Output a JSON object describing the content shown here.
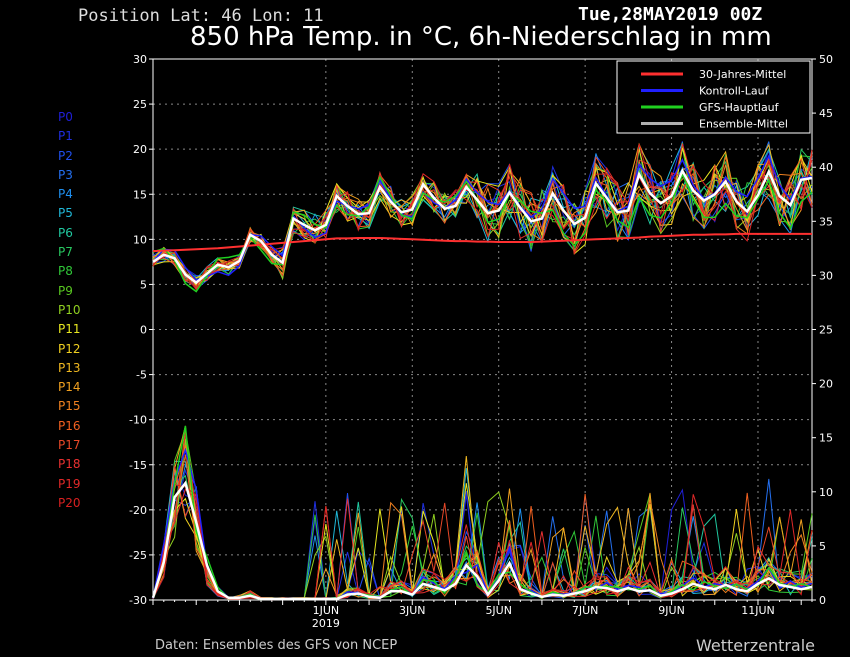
{
  "header": {
    "position_text": "Position   Lat: 46 Lon: 11",
    "date": "Tue,28MAY2019 00Z",
    "title": "850 hPa Temp. in °C, 6h-Niederschlag in mm"
  },
  "footer": {
    "source": "Daten: Ensembles des GFS von NCEP",
    "brand": "Wetterzentrale"
  },
  "members": [
    {
      "label": "P0",
      "color": "#1f1fd8"
    },
    {
      "label": "P1",
      "color": "#1f2fe0"
    },
    {
      "label": "P2",
      "color": "#2050ee"
    },
    {
      "label": "P3",
      "color": "#2470f0"
    },
    {
      "label": "P4",
      "color": "#1f90f0"
    },
    {
      "label": "P5",
      "color": "#20b8d8"
    },
    {
      "label": "P6",
      "color": "#20c8a0"
    },
    {
      "label": "P7",
      "color": "#28c860"
    },
    {
      "label": "P8",
      "color": "#30c838"
    },
    {
      "label": "P9",
      "color": "#58c820"
    },
    {
      "label": "P10",
      "color": "#90d020"
    },
    {
      "label": "P11",
      "color": "#e8e820"
    },
    {
      "label": "P12",
      "color": "#f0d020"
    },
    {
      "label": "P13",
      "color": "#f0b820"
    },
    {
      "label": "P14",
      "color": "#f0a020"
    },
    {
      "label": "P15",
      "color": "#f08020"
    },
    {
      "label": "P16",
      "color": "#f06020"
    },
    {
      "label": "P17",
      "color": "#e84828"
    },
    {
      "label": "P18",
      "color": "#e83030"
    },
    {
      "label": "P19",
      "color": "#e02828"
    },
    {
      "label": "P20",
      "color": "#d82020"
    }
  ],
  "chart_data": {
    "type": "line",
    "title": "850 hPa Temp. in °C, 6h-Niederschlag in mm",
    "x_ticks": [
      {
        "label": "1JUN",
        "step": 16,
        "sub": "2019"
      },
      {
        "label": "3JUN",
        "step": 24
      },
      {
        "label": "5JUN",
        "step": 32
      },
      {
        "label": "7JUN",
        "step": 40
      },
      {
        "label": "9JUN",
        "step": 48
      },
      {
        "label": "11JUN",
        "step": 56
      }
    ],
    "x_unit": "6-hour steps from 28MAY2019 00Z",
    "xlim": [
      0,
      61
    ],
    "y_left": {
      "label": "°C",
      "range": [
        -30,
        30
      ],
      "ticks": [
        30,
        25,
        20,
        15,
        10,
        5,
        0,
        -5,
        -10,
        -15,
        -20,
        -25,
        -30
      ]
    },
    "y_right": {
      "label": "mm",
      "range": [
        0,
        50
      ],
      "ticks": [
        50,
        45,
        40,
        35,
        30,
        25,
        20,
        15,
        10,
        5,
        0
      ]
    },
    "grid": true,
    "legend_position": "top-right",
    "legend": [
      {
        "name": "30-Jahres-Mittel",
        "color": "#ff3030"
      },
      {
        "name": "Kontroll-Lauf",
        "color": "#2020ff"
      },
      {
        "name": "GFS-Hauptlauf",
        "color": "#20d020"
      },
      {
        "name": "Ensemble-Mittel",
        "color": "#b0b0b0"
      }
    ],
    "climate_mean": [
      8.7,
      8.75,
      8.8,
      8.85,
      8.9,
      8.95,
      9.0,
      9.1,
      9.2,
      9.3,
      9.4,
      9.5,
      9.6,
      9.7,
      9.8,
      9.9,
      10.0,
      10.1,
      10.1,
      10.15,
      10.15,
      10.15,
      10.1,
      10.05,
      10.0,
      9.95,
      9.9,
      9.85,
      9.8,
      9.8,
      9.75,
      9.75,
      9.7,
      9.7,
      9.7,
      9.7,
      9.75,
      9.8,
      9.85,
      9.9,
      9.95,
      10.0,
      10.05,
      10.1,
      10.15,
      10.2,
      10.3,
      10.35,
      10.4,
      10.45,
      10.5,
      10.5,
      10.55,
      10.55,
      10.6,
      10.6,
      10.6,
      10.6,
      10.6,
      10.6,
      10.6,
      10.6
    ],
    "ensemble_mean_temp": [
      7.5,
      8.3,
      7.9,
      6.1,
      5.2,
      6.2,
      7.2,
      6.9,
      7.6,
      10.5,
      9.8,
      8.3,
      7.4,
      12.3,
      11.6,
      11.0,
      11.6,
      14.8,
      13.7,
      12.8,
      12.9,
      15.8,
      14.2,
      13.0,
      13.3,
      16.1,
      14.6,
      13.4,
      13.7,
      15.8,
      14.4,
      12.9,
      13.2,
      15.2,
      13.5,
      12.0,
      12.3,
      15.1,
      13.2,
      11.7,
      12.4,
      16.2,
      14.6,
      13.0,
      13.2,
      17.2,
      15.1,
      14.0,
      14.8,
      17.6,
      15.4,
      14.3,
      15.0,
      16.4,
      14.2,
      13.1,
      14.9,
      17.5,
      14.8,
      13.8,
      16.6,
      16.8
    ],
    "ensemble_mean_precip": [
      0.2,
      3.5,
      9.5,
      10.8,
      7.2,
      3.2,
      0.8,
      0.2,
      0.2,
      0.4,
      0.1,
      0.1,
      0.1,
      0.1,
      0.1,
      0.1,
      0.1,
      0.1,
      0.5,
      0.6,
      0.3,
      0.2,
      0.8,
      0.8,
      0.5,
      1.5,
      1.2,
      0.9,
      1.5,
      3.2,
      2.2,
      0.5,
      1.8,
      3.4,
      1.0,
      0.6,
      0.3,
      0.5,
      0.4,
      0.6,
      0.8,
      1.2,
      1.1,
      0.8,
      1.1,
      0.8,
      0.9,
      0.4,
      0.6,
      1.0,
      1.5,
      1.2,
      1.0,
      1.4,
      1.0,
      0.8,
      1.5,
      2.0,
      1.4,
      1.2,
      1.0,
      1.2
    ]
  }
}
